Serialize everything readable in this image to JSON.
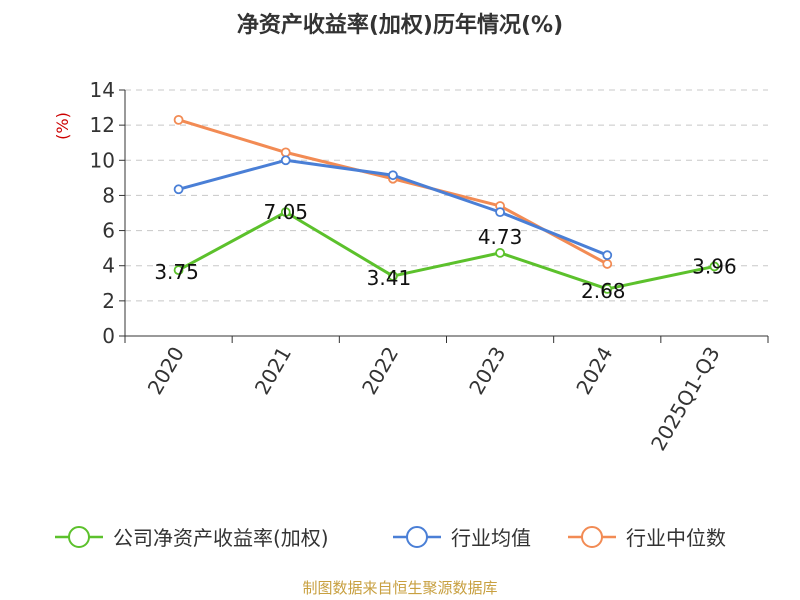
{
  "chart_data": {
    "type": "line",
    "title": "净资产收益率(加权)历年情况(%)",
    "ylabel": "(%)",
    "xlabel": "",
    "categories": [
      "2020",
      "2021",
      "2022",
      "2023",
      "2024",
      "2025Q1-Q3"
    ],
    "ylim": [
      0,
      14
    ],
    "yticks": [
      0,
      2,
      4,
      6,
      8,
      10,
      12,
      14
    ],
    "grid": true,
    "legend_position": "bottom",
    "series": [
      {
        "name": "公司净资产收益率(加权)",
        "color": "#5cc12c",
        "values": [
          3.75,
          7.05,
          3.41,
          4.73,
          2.68,
          3.96
        ],
        "labels": [
          "3.75",
          "7.05",
          "3.41",
          "4.73",
          "2.68",
          "3.96"
        ]
      },
      {
        "name": "行业均值",
        "color": "#4a7fd6",
        "values": [
          8.35,
          10.0,
          9.15,
          7.05,
          4.6,
          null
        ]
      },
      {
        "name": "行业中位数",
        "color": "#f28b54",
        "values": [
          12.3,
          10.45,
          8.95,
          7.4,
          4.1,
          null
        ]
      }
    ],
    "source": "制图数据来自恒生聚源数据库"
  }
}
